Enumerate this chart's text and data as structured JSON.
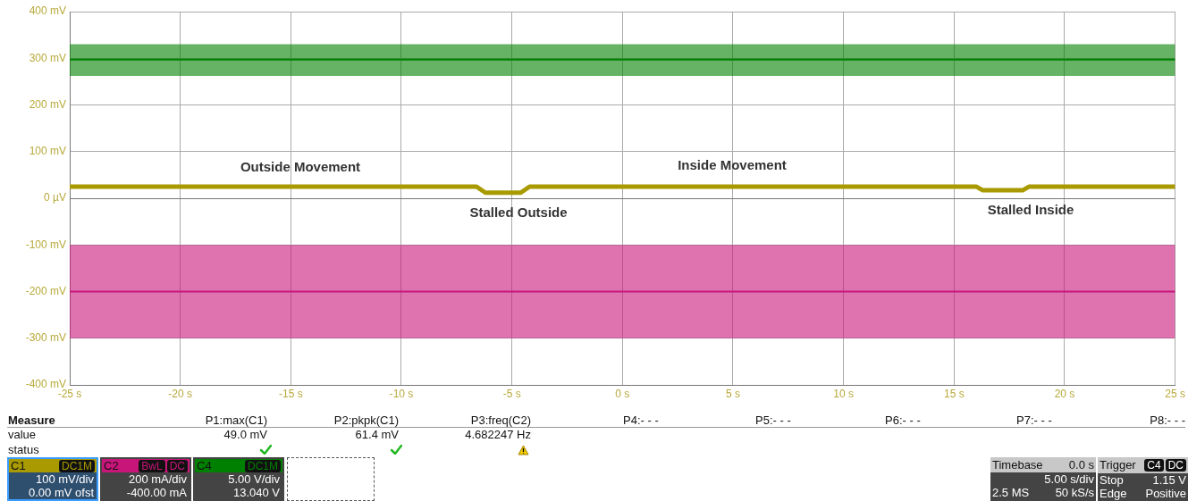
{
  "chart_data": {
    "type": "line",
    "x": [
      -25,
      25
    ],
    "xlim": [
      -25,
      25
    ],
    "xticks": [
      {
        "value": -25,
        "label": "-25 s"
      },
      {
        "value": -20,
        "label": "-20 s"
      },
      {
        "value": -15,
        "label": "-15 s"
      },
      {
        "value": -10,
        "label": "-10 s"
      },
      {
        "value": -5,
        "label": "-5 s"
      },
      {
        "value": 0,
        "label": "0 s"
      },
      {
        "value": 5,
        "label": "5 s"
      },
      {
        "value": 10,
        "label": "10 s"
      },
      {
        "value": 15,
        "label": "15 s"
      },
      {
        "value": 20,
        "label": "20 s"
      },
      {
        "value": 25,
        "label": "25 s"
      }
    ],
    "ylim": [
      -400,
      400
    ],
    "yticks": [
      {
        "value": -400,
        "label": "-400 mV"
      },
      {
        "value": -300,
        "label": "-300 mV"
      },
      {
        "value": -200,
        "label": "-200 mV"
      },
      {
        "value": -100,
        "label": "-100 mV"
      },
      {
        "value": 0,
        "label": "0 µV"
      },
      {
        "value": 100,
        "label": "100 mV"
      },
      {
        "value": 200,
        "label": "200 mV"
      },
      {
        "value": 300,
        "label": "300 mV"
      },
      {
        "value": 400,
        "label": "400 mV"
      }
    ],
    "grid": true,
    "legend": "bottom left",
    "series": [
      {
        "name": "C1",
        "color": "#a89a00",
        "x": [
          -25,
          -6.6,
          -6.2,
          -4.6,
          -4.2,
          16.0,
          16.3,
          18.1,
          18.4,
          25
        ],
        "values": [
          25,
          25,
          12,
          12,
          25,
          25,
          17,
          17,
          25,
          25
        ]
      },
      {
        "name": "C2",
        "color": "#c8157a",
        "values": [
          -200,
          -200
        ],
        "lower": [
          -300,
          -300
        ],
        "upper": [
          -100,
          -100
        ]
      },
      {
        "name": "C4",
        "color": "#008000",
        "values": [
          297,
          297
        ],
        "lower": [
          262,
          262
        ],
        "upper": [
          330,
          330
        ]
      }
    ],
    "annotations": [
      "Outside Movement",
      "Inside Movement",
      "Stalled Outside",
      "Stalled Inside",
      "Measure",
      "P1:max(C1)",
      "P2:pkpk(C1)",
      "P3:freq(C2)",
      "P4:- - -",
      "P5:- - -",
      "P6:- - -",
      "P7:- - -",
      "P8:- - -",
      "value",
      "49.0 mV",
      "61.4 mV",
      "4.682247 Hz",
      "status",
      "DC1M",
      "BwL",
      "DC",
      "DC1M",
      "100 mV/div",
      "0.00 mV ofst",
      "200 mA/div",
      "-400.00 mA",
      "5.00 V/div",
      "13.040 V",
      "Timebase",
      "0.0 s",
      "5.00 s/div",
      "2.5 MS",
      "50 kS/s",
      "Trigger",
      "C4",
      "DC",
      "Stop",
      "1.15 V",
      "Edge",
      "Positive"
    ]
  }
}
